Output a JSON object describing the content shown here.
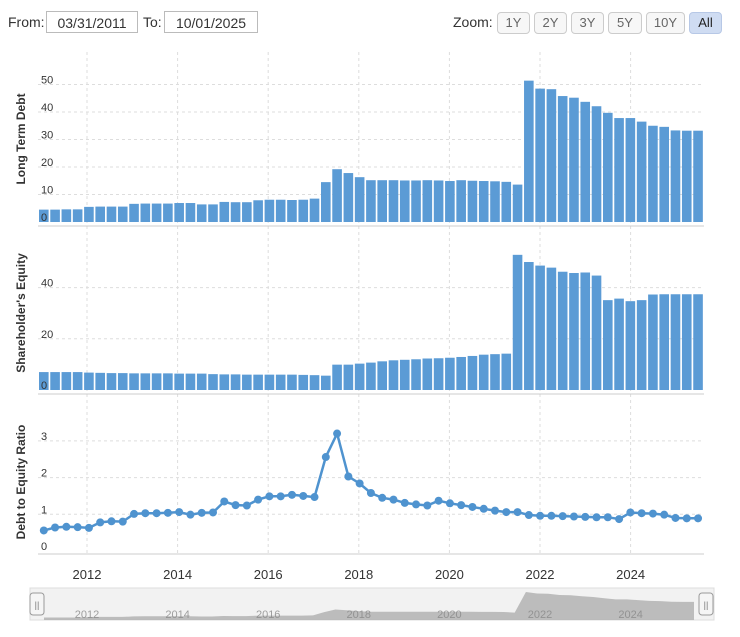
{
  "toolbar": {
    "from_label": "From:",
    "from_value": "03/31/2011",
    "to_label": "To:",
    "to_value": "10/01/2025",
    "zoom_label": "Zoom:",
    "zoom_buttons": [
      "1Y",
      "2Y",
      "3Y",
      "5Y",
      "10Y",
      "All"
    ],
    "active_zoom": "All"
  },
  "colors": {
    "bar": "#5b9bd5",
    "line": "#4f93cf",
    "grid": "#dddddd",
    "navigator_fill": "#a9a9a9"
  },
  "chart_data": [
    {
      "type": "bar",
      "ylabel": "Long Term Debt",
      "yticks": [
        0,
        10,
        20,
        30,
        40,
        50
      ],
      "ylim": [
        0,
        55
      ],
      "xlabels": [
        "2012",
        "2014",
        "2016",
        "2018",
        "2020",
        "2022",
        "2024"
      ],
      "x": [
        "2011-03",
        "2011-06",
        "2011-09",
        "2011-12",
        "2012-03",
        "2012-06",
        "2012-09",
        "2012-12",
        "2013-03",
        "2013-06",
        "2013-09",
        "2013-12",
        "2014-03",
        "2014-06",
        "2014-09",
        "2014-12",
        "2015-03",
        "2015-06",
        "2015-09",
        "2015-12",
        "2016-03",
        "2016-06",
        "2016-09",
        "2016-12",
        "2017-03",
        "2017-06",
        "2017-09",
        "2017-12",
        "2018-03",
        "2018-06",
        "2018-09",
        "2018-12",
        "2019-03",
        "2019-06",
        "2019-09",
        "2019-12",
        "2020-03",
        "2020-06",
        "2020-09",
        "2020-12",
        "2021-03",
        "2021-06",
        "2021-09",
        "2021-12",
        "2022-03",
        "2022-06",
        "2022-09",
        "2022-12",
        "2023-03",
        "2023-06",
        "2023-09",
        "2023-12",
        "2024-03",
        "2024-06",
        "2024-09",
        "2024-12",
        "2025-03",
        "2025-06",
        "2025-09"
      ],
      "values": [
        4.5,
        4.5,
        4.6,
        4.6,
        5.5,
        5.6,
        5.6,
        5.6,
        6.6,
        6.7,
        6.7,
        6.7,
        6.9,
        6.9,
        6.4,
        6.4,
        7.3,
        7.2,
        7.2,
        7.9,
        8.1,
        8.1,
        8.0,
        8.1,
        8.5,
        14.5,
        19.2,
        17.8,
        16.3,
        15.2,
        15.2,
        15.2,
        15.1,
        15.1,
        15.2,
        15.1,
        14.9,
        15.2,
        15.0,
        14.9,
        14.8,
        14.6,
        13.6,
        51.4,
        48.5,
        48.3,
        45.8,
        45.2,
        43.7,
        42.1,
        39.7,
        37.8,
        37.8,
        36.5,
        35.0,
        34.6,
        33.3,
        33.2,
        33.2
      ]
    },
    {
      "type": "bar",
      "ylabel": "Shareholder's Equity",
      "yticks": [
        0,
        20,
        40
      ],
      "ylim": [
        0,
        58
      ],
      "xlabels": [
        "2012",
        "2014",
        "2016",
        "2018",
        "2020",
        "2022",
        "2024"
      ],
      "values": [
        7.0,
        7.0,
        7.0,
        7.0,
        6.8,
        6.7,
        6.6,
        6.6,
        6.5,
        6.5,
        6.5,
        6.5,
        6.4,
        6.4,
        6.4,
        6.2,
        6.1,
        6.1,
        6.0,
        6.0,
        6.0,
        6.0,
        6.0,
        5.9,
        5.8,
        5.6,
        9.9,
        9.9,
        10.3,
        10.7,
        11.2,
        11.6,
        11.8,
        12.0,
        12.3,
        12.4,
        12.6,
        12.9,
        13.3,
        13.8,
        14.0,
        14.2,
        52.8,
        50.0,
        48.6,
        47.8,
        46.2,
        45.7,
        45.9,
        44.7,
        35.1,
        35.7,
        34.7,
        35.1,
        37.3,
        37.4,
        37.4,
        37.4,
        37.4
      ]
    },
    {
      "type": "line",
      "ylabel": "Debt to Equity Ratio",
      "yticks": [
        0,
        1,
        2,
        3
      ],
      "ylim": [
        0,
        3.5
      ],
      "xlabels": [
        "2012",
        "2014",
        "2016",
        "2018",
        "2020",
        "2022",
        "2024"
      ],
      "values": [
        0.56,
        0.64,
        0.66,
        0.65,
        0.63,
        0.78,
        0.81,
        0.8,
        1.01,
        1.03,
        1.03,
        1.04,
        1.06,
        0.99,
        1.04,
        1.05,
        1.35,
        1.25,
        1.24,
        1.4,
        1.49,
        1.49,
        1.53,
        1.5,
        1.47,
        2.56,
        3.2,
        2.03,
        1.84,
        1.58,
        1.45,
        1.4,
        1.31,
        1.27,
        1.24,
        1.37,
        1.3,
        1.25,
        1.2,
        1.15,
        1.1,
        1.06,
        1.06,
        0.98,
        0.96,
        0.96,
        0.95,
        0.94,
        0.93,
        0.92,
        0.92,
        0.87,
        1.05,
        1.03,
        1.02,
        0.99,
        0.9,
        0.89,
        0.89
      ]
    }
  ],
  "navigator": {
    "xlabels": [
      "2012",
      "2014",
      "2016",
      "2018",
      "2020",
      "2022",
      "2024"
    ],
    "handle_glyph": "||"
  }
}
